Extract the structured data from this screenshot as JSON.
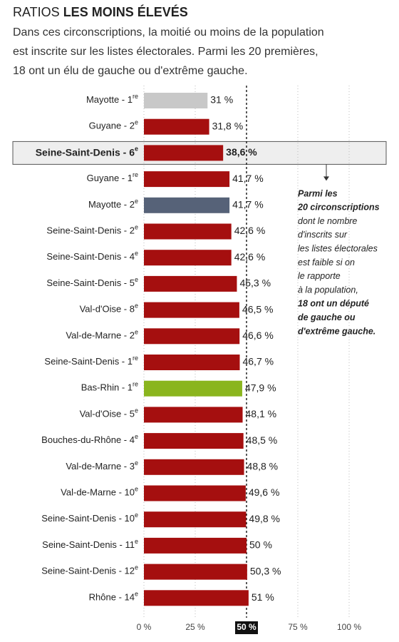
{
  "chart_data": {
    "type": "bar",
    "orientation": "horizontal",
    "title_prefix": "RATIOS",
    "title": "LES MOINS ÉLEVÉS",
    "subtitle": [
      "Dans ces circonscriptions, la moitié ou moins de la population",
      "est inscrite sur les listes électorales. Parmi les 20 premières,",
      "18 ont un élu de gauche ou d'extrême gauche."
    ],
    "categories": [
      "Mayotte - 1",
      "Guyane - 2",
      "Seine-Saint-Denis - 6",
      "Guyane - 1",
      "Mayotte - 2",
      "Seine-Saint-Denis - 2",
      "Seine-Saint-Denis - 4",
      "Seine-Saint-Denis - 5",
      "Val-d'Oise - 8",
      "Val-de-Marne - 2",
      "Seine-Saint-Denis - 1",
      "Bas-Rhin - 1",
      "Val-d'Oise - 5",
      "Bouches-du-Rhône - 4",
      "Val-de-Marne - 3",
      "Val-de-Marne - 10",
      "Seine-Saint-Denis - 10",
      "Seine-Saint-Denis - 11",
      "Seine-Saint-Denis - 12",
      "Rhône - 14"
    ],
    "superscripts": [
      "re",
      "e",
      "e",
      "re",
      "e",
      "e",
      "e",
      "e",
      "e",
      "e",
      "re",
      "re",
      "e",
      "e",
      "e",
      "e",
      "e",
      "e",
      "e",
      "e"
    ],
    "values": [
      31,
      31.8,
      38.6,
      41.7,
      41.7,
      42.6,
      42.6,
      45.3,
      46.5,
      46.6,
      46.7,
      47.9,
      48.1,
      48.5,
      48.8,
      49.6,
      49.8,
      50,
      50.3,
      51
    ],
    "value_labels": [
      "31 %",
      "31,8 %",
      "38,6 %",
      "41,7 %",
      "41,7 %",
      "42,6 %",
      "42,6 %",
      "45,3 %",
      "46,5 %",
      "46,6 %",
      "46,7 %",
      "47,9 %",
      "48,1 %",
      "48,5 %",
      "48,8 %",
      "49,6 %",
      "49,8 %",
      "50 %",
      "50,3 %",
      "51 %"
    ],
    "colors": [
      "#c8c8c8",
      "#a50f0f",
      "#a50f0f",
      "#a50f0f",
      "#566278",
      "#a50f0f",
      "#a50f0f",
      "#a50f0f",
      "#a50f0f",
      "#a50f0f",
      "#a50f0f",
      "#8ab51e",
      "#a50f0f",
      "#a50f0f",
      "#a50f0f",
      "#a50f0f",
      "#a50f0f",
      "#a50f0f",
      "#a50f0f",
      "#a50f0f"
    ],
    "highlight": 2,
    "reference": 50,
    "xlim": [
      0,
      100
    ],
    "xticks": [
      {
        "value": 0,
        "label": "0 %"
      },
      {
        "value": 25,
        "label": "25 %"
      },
      {
        "value": 50,
        "label": "50 %"
      },
      {
        "value": 75,
        "label": "75 %"
      },
      {
        "value": 100,
        "label": "100 %"
      }
    ],
    "grid": true,
    "annotation": [
      {
        "text": "Parmi les",
        "bold": true
      },
      {
        "text": "20 circonscriptions",
        "bold": true
      },
      {
        "text": "dont le nombre",
        "bold": false
      },
      {
        "text": "d'inscrits sur",
        "bold": false
      },
      {
        "text": "les listes électorales",
        "bold": false
      },
      {
        "text": "est faible si on",
        "bold": false
      },
      {
        "text": "le rapporte",
        "bold": false
      },
      {
        "text": "à la population,",
        "bold": false
      },
      {
        "text": "18 ont un député",
        "bold": true
      },
      {
        "text": "de gauche ou",
        "bold": true
      },
      {
        "text": "d'extrême gauche.",
        "bold": true
      }
    ]
  }
}
